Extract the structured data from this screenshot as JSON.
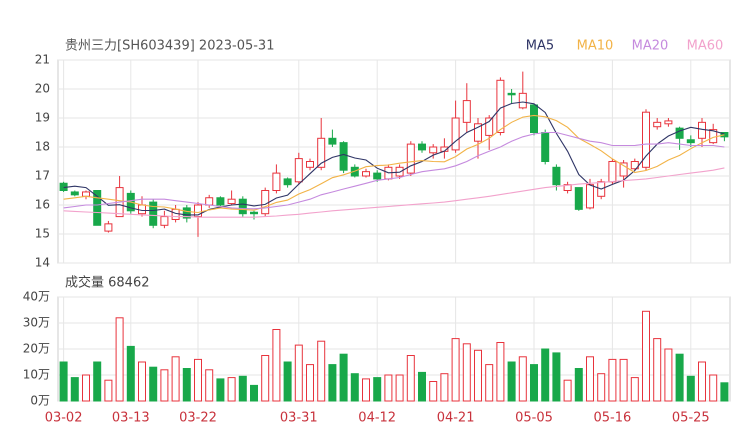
{
  "chart_data": {
    "type": "candlestick",
    "title": "贵州三力[SH603439] 2023-05-31",
    "categories": [
      "03-02",
      null,
      null,
      null,
      null,
      null,
      "03-13",
      null,
      null,
      null,
      null,
      null,
      "03-22",
      null,
      null,
      null,
      null,
      null,
      null,
      null,
      null,
      "03-31",
      null,
      null,
      null,
      null,
      null,
      null,
      "04-12",
      null,
      null,
      null,
      null,
      null,
      null,
      "04-21",
      null,
      null,
      null,
      null,
      null,
      null,
      "05-05",
      null,
      null,
      null,
      null,
      null,
      null,
      "05-16",
      null,
      null,
      null,
      null,
      null,
      null,
      "05-25",
      null,
      null,
      null
    ],
    "open": [
      16.75,
      16.45,
      16.3,
      16.5,
      15.1,
      15.6,
      16.4,
      15.7,
      16.1,
      15.3,
      15.5,
      15.9,
      15.6,
      16.0,
      16.25,
      16.05,
      16.2,
      15.75,
      15.7,
      16.5,
      16.9,
      16.8,
      17.3,
      17.3,
      18.3,
      18.15,
      17.3,
      17.0,
      17.1,
      16.9,
      17.0,
      17.1,
      18.1,
      17.8,
      17.85,
      17.9,
      18.85,
      18.2,
      18.4,
      18.5,
      19.85,
      19.35,
      19.45,
      18.5,
      17.3,
      16.5,
      16.6,
      15.9,
      16.3,
      16.8,
      17.0,
      17.25,
      17.3,
      18.7,
      18.8,
      18.65,
      18.25,
      18.3,
      18.15,
      18.5
    ],
    "high": [
      16.8,
      16.5,
      16.5,
      16.5,
      15.45,
      17.0,
      16.5,
      16.3,
      16.2,
      15.8,
      16.0,
      16.0,
      16.1,
      16.35,
      16.3,
      16.5,
      16.3,
      15.8,
      16.6,
      17.4,
      16.95,
      17.8,
      17.6,
      19.0,
      18.6,
      18.2,
      17.4,
      17.25,
      17.2,
      17.4,
      17.4,
      18.2,
      18.2,
      18.1,
      18.3,
      19.6,
      20.2,
      19.0,
      19.1,
      20.4,
      20.0,
      20.6,
      19.5,
      18.6,
      17.4,
      16.8,
      16.6,
      16.9,
      16.9,
      17.6,
      17.55,
      17.6,
      19.3,
      19.0,
      19.0,
      18.7,
      18.4,
      19.0,
      18.8,
      18.5
    ],
    "low": [
      16.45,
      16.3,
      16.2,
      15.3,
      15.05,
      15.6,
      15.7,
      15.6,
      15.2,
      15.2,
      15.4,
      15.4,
      14.9,
      15.9,
      15.9,
      16.0,
      15.6,
      15.5,
      15.6,
      16.4,
      16.6,
      16.7,
      17.2,
      17.2,
      18.0,
      17.1,
      16.95,
      16.95,
      16.8,
      16.85,
      16.9,
      17.0,
      17.8,
      17.6,
      17.6,
      17.8,
      18.5,
      17.6,
      17.9,
      18.4,
      19.5,
      19.3,
      18.4,
      17.4,
      16.5,
      16.4,
      15.8,
      15.85,
      16.2,
      16.7,
      16.6,
      17.2,
      17.2,
      18.6,
      18.7,
      17.9,
      18.0,
      18.0,
      18.1,
      18.2
    ],
    "close": [
      16.5,
      16.35,
      16.45,
      15.3,
      15.35,
      16.6,
      15.8,
      16.0,
      15.3,
      15.6,
      15.85,
      15.55,
      16.0,
      16.25,
      16.0,
      16.2,
      15.7,
      15.7,
      16.5,
      17.1,
      16.7,
      17.6,
      17.5,
      18.3,
      18.1,
      17.2,
      17.0,
      17.15,
      16.9,
      17.3,
      17.3,
      18.1,
      17.9,
      18.0,
      18.0,
      19.0,
      19.6,
      18.8,
      19.0,
      20.3,
      19.8,
      19.85,
      18.5,
      17.5,
      16.7,
      16.7,
      15.85,
      16.7,
      16.8,
      17.5,
      17.45,
      17.5,
      19.2,
      18.85,
      18.9,
      18.3,
      18.15,
      18.85,
      18.6,
      18.35
    ],
    "up_color": "#e8333c",
    "down_color": "#18a84a",
    "series": [
      {
        "name": "MA5",
        "color": "#2f3566",
        "values": [
          16.6,
          16.65,
          16.6,
          16.3,
          15.99,
          16.01,
          15.9,
          15.81,
          15.81,
          15.86,
          15.71,
          15.66,
          15.66,
          15.85,
          15.93,
          16.0,
          16.03,
          15.97,
          16.02,
          16.24,
          16.34,
          16.72,
          17.08,
          17.44,
          17.64,
          17.74,
          17.62,
          17.55,
          17.27,
          17.11,
          17.13,
          17.35,
          17.5,
          17.72,
          17.86,
          18.2,
          18.5,
          18.68,
          18.88,
          19.34,
          19.5,
          19.55,
          19.49,
          19.19,
          18.47,
          17.85,
          17.05,
          16.69,
          16.55,
          16.71,
          16.86,
          17.19,
          17.69,
          18.1,
          18.38,
          18.55,
          18.68,
          18.61,
          18.56,
          18.45
        ]
      },
      {
        "name": "MA10",
        "color": "#f2b347",
        "values": [
          16.2,
          16.25,
          16.3,
          16.25,
          16.2,
          16.15,
          16.1,
          16.0,
          15.95,
          15.93,
          15.86,
          15.78,
          15.74,
          15.83,
          15.9,
          15.86,
          15.85,
          15.82,
          15.94,
          16.09,
          16.17,
          16.38,
          16.53,
          16.73,
          16.94,
          17.04,
          17.17,
          17.32,
          17.36,
          17.38,
          17.44,
          17.49,
          17.53,
          17.5,
          17.49,
          17.67,
          17.93,
          18.09,
          18.3,
          18.6,
          18.85,
          19.03,
          19.09,
          19.04,
          18.91,
          18.68,
          18.3,
          18.09,
          17.87,
          17.59,
          17.36,
          17.12,
          17.19,
          17.33,
          17.55,
          17.71,
          17.94,
          18.15,
          18.33,
          18.42
        ]
      },
      {
        "name": "MA20",
        "color": "#c58ade",
        "values": [
          15.9,
          15.95,
          16.0,
          16.0,
          16.05,
          16.1,
          16.15,
          16.2,
          16.2,
          16.2,
          16.15,
          16.1,
          16.05,
          16.0,
          15.95,
          15.9,
          15.88,
          15.87,
          15.9,
          15.95,
          16.0,
          16.1,
          16.2,
          16.35,
          16.45,
          16.55,
          16.65,
          16.75,
          16.85,
          16.9,
          16.95,
          17.05,
          17.15,
          17.2,
          17.25,
          17.35,
          17.5,
          17.7,
          17.85,
          18.0,
          18.2,
          18.35,
          18.45,
          18.5,
          18.5,
          18.4,
          18.3,
          18.2,
          18.15,
          18.05,
          18.05,
          18.05,
          18.1,
          18.1,
          18.15,
          18.1,
          18.05,
          18.05,
          18.05,
          18.0
        ]
      },
      {
        "name": "MA60",
        "color": "#f2a2cc",
        "values": [
          15.8,
          15.78,
          15.76,
          15.74,
          15.72,
          15.7,
          15.68,
          15.66,
          15.64,
          15.62,
          15.6,
          15.6,
          15.58,
          15.58,
          15.58,
          15.58,
          15.58,
          15.58,
          15.6,
          15.62,
          15.65,
          15.68,
          15.72,
          15.76,
          15.8,
          15.83,
          15.86,
          15.89,
          15.92,
          15.95,
          15.98,
          16.01,
          16.04,
          16.07,
          16.1,
          16.15,
          16.2,
          16.25,
          16.3,
          16.36,
          16.42,
          16.48,
          16.54,
          16.6,
          16.64,
          16.68,
          16.72,
          16.75,
          16.78,
          16.81,
          16.84,
          16.87,
          16.9,
          16.95,
          17.0,
          17.05,
          17.1,
          17.15,
          17.2,
          17.28
        ]
      }
    ],
    "ylim": [
      14,
      21
    ],
    "yticks": [
      14,
      15,
      16,
      17,
      18,
      19,
      20,
      21
    ],
    "grid": true,
    "volume": {
      "title": "成交量 68462",
      "values": [
        15,
        9,
        10,
        15,
        8,
        32,
        21,
        15,
        13,
        12,
        17,
        12.5,
        16,
        12,
        8.5,
        9,
        9.5,
        6,
        17.5,
        27.5,
        15,
        21.5,
        14,
        23,
        14,
        18,
        10.5,
        8.5,
        9,
        10,
        10,
        17.5,
        11,
        7.5,
        10.5,
        24,
        22,
        19.5,
        14,
        22.5,
        15,
        17,
        14,
        20,
        18.5,
        8,
        12.5,
        17,
        10.5,
        16,
        16,
        9,
        34.5,
        24,
        20,
        18,
        9.5,
        15,
        10,
        7
      ],
      "ylim": [
        0,
        40
      ],
      "yticks": [
        {
          "value": 0,
          "label": "0万"
        },
        {
          "value": 10,
          "label": "10万"
        },
        {
          "value": 20,
          "label": "20万"
        },
        {
          "value": 30,
          "label": "30万"
        },
        {
          "value": 40,
          "label": "40万"
        }
      ]
    }
  }
}
